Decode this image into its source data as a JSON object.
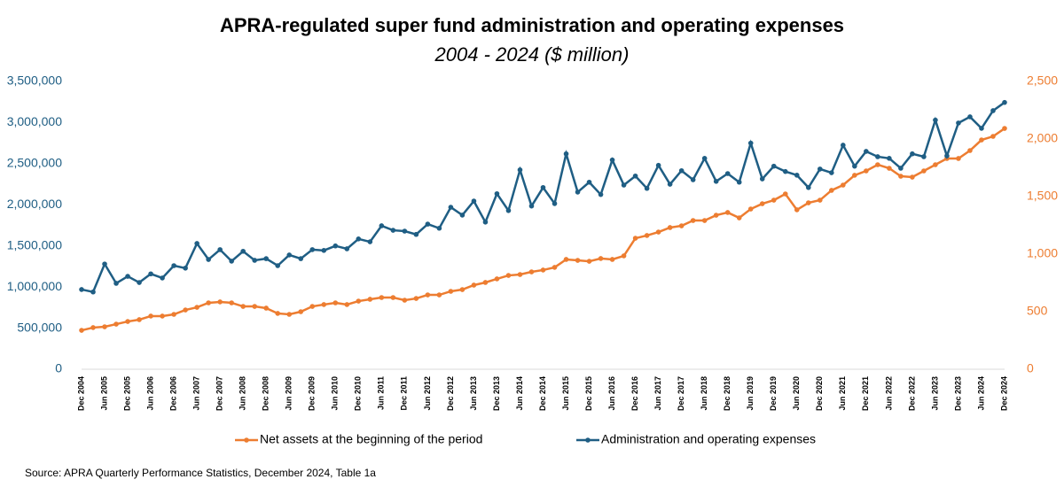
{
  "chart_data": {
    "type": "line",
    "title": "APRA-regulated super fund administration and operating expenses",
    "subtitle": "2004 - 2024 ($ million)",
    "source": "Source: APRA Quarterly Performance Statistics, December 2024, Table 1a",
    "categories": [
      "Dec 2004",
      null,
      "Jun 2005",
      null,
      "Dec 2005",
      null,
      "Jun 2006",
      null,
      "Dec 2006",
      null,
      "Jun 2007",
      null,
      "Dec 2007",
      null,
      "Jun 2008",
      null,
      "Dec 2008",
      null,
      "Jun 2009",
      null,
      "Dec 2009",
      null,
      "Jun 2010",
      null,
      "Dec 2010",
      null,
      "Jun 2011",
      null,
      "Dec 2011",
      null,
      "Jun 2012",
      null,
      "Dec 2012",
      null,
      "Jun 2013",
      null,
      "Dec 2013",
      null,
      "Jun 2014",
      null,
      "Dec 2014",
      null,
      "Jun 2015",
      null,
      "Dec 2015",
      null,
      "Jun 2016",
      null,
      "Dec 2016",
      null,
      "Jun 2017",
      null,
      "Dec 2017",
      null,
      "Jun 2018",
      null,
      "Dec 2018",
      null,
      "Jun 2019",
      null,
      "Dec 2019",
      null,
      "Jun 2020",
      null,
      "Dec 2020",
      null,
      "Jun 2021",
      null,
      "Dec 2021",
      null,
      "Jun 2022",
      null,
      "Dec 2022",
      null,
      "Jun 2023",
      null,
      "Dec 2023",
      null,
      "Jun 2024",
      null,
      "Dec 2024"
    ],
    "series": [
      {
        "name": "Net assets at the beginning of the period",
        "color": "#ed7d31",
        "axis": "y2",
        "values": [
          338,
          362,
          369,
          392,
          415,
          431,
          462,
          462,
          477,
          515,
          538,
          577,
          585,
          577,
          546,
          546,
          531,
          485,
          477,
          500,
          546,
          562,
          577,
          562,
          592,
          608,
          623,
          623,
          600,
          615,
          646,
          646,
          677,
          692,
          731,
          754,
          785,
          815,
          823,
          846,
          862,
          885,
          954,
          946,
          938,
          962,
          954,
          985,
          1138,
          1162,
          1192,
          1231,
          1246,
          1292,
          1292,
          1338,
          1362,
          1315,
          1392,
          1438,
          1469,
          1523,
          1385,
          1446,
          1469,
          1554,
          1600,
          1685,
          1723,
          1777,
          1746,
          1677,
          1669,
          1723,
          1777,
          1831,
          1831,
          1900,
          1992,
          2023,
          2092
        ]
      },
      {
        "name": "Administration and operating expenses",
        "color": "#1f5e84",
        "values": [
          970000,
          940000,
          1280000,
          1045000,
          1130000,
          1055000,
          1160000,
          1110000,
          1260000,
          1230000,
          1530000,
          1335000,
          1455000,
          1315000,
          1435000,
          1325000,
          1345000,
          1260000,
          1390000,
          1345000,
          1455000,
          1445000,
          1500000,
          1465000,
          1585000,
          1550000,
          1745000,
          1690000,
          1680000,
          1640000,
          1765000,
          1715000,
          1970000,
          1875000,
          2045000,
          1790000,
          2135000,
          1930000,
          2425000,
          1985000,
          2210000,
          2015000,
          2620000,
          2155000,
          2275000,
          2125000,
          2545000,
          2240000,
          2350000,
          2200000,
          2480000,
          2250000,
          2415000,
          2305000,
          2565000,
          2285000,
          2380000,
          2275000,
          2750000,
          2315000,
          2470000,
          2405000,
          2360000,
          2210000,
          2435000,
          2390000,
          2725000,
          2470000,
          2650000,
          2585000,
          2565000,
          2445000,
          2620000,
          2585000,
          3030000,
          2595000,
          2995000,
          3070000,
          2930000,
          3145000,
          3245000
        ]
      }
    ],
    "ylim": [
      0,
      3500000
    ],
    "yticks": [
      0,
      {
        "value": 500000,
        "label": "500,000"
      },
      {
        "value": 1000000,
        "label": "1,000,000"
      },
      {
        "value": 1500000,
        "label": "1,500,000"
      },
      {
        "value": 2000000,
        "label": "2,000,000"
      },
      {
        "value": 2500000,
        "label": "2,500,000"
      },
      {
        "value": 3000000,
        "label": "3,000,000"
      },
      {
        "value": 3500000,
        "label": "3,500,000"
      }
    ],
    "y2lim": [
      0,
      2500
    ],
    "y2ticks": [
      0,
      500,
      {
        "value": 1000,
        "label": "1,000"
      },
      {
        "value": 1500,
        "label": "1,500"
      },
      {
        "value": 2000,
        "label": "2,000"
      },
      {
        "value": 2500,
        "label": "2,500"
      }
    ],
    "grid": false,
    "legend": "bottom"
  }
}
